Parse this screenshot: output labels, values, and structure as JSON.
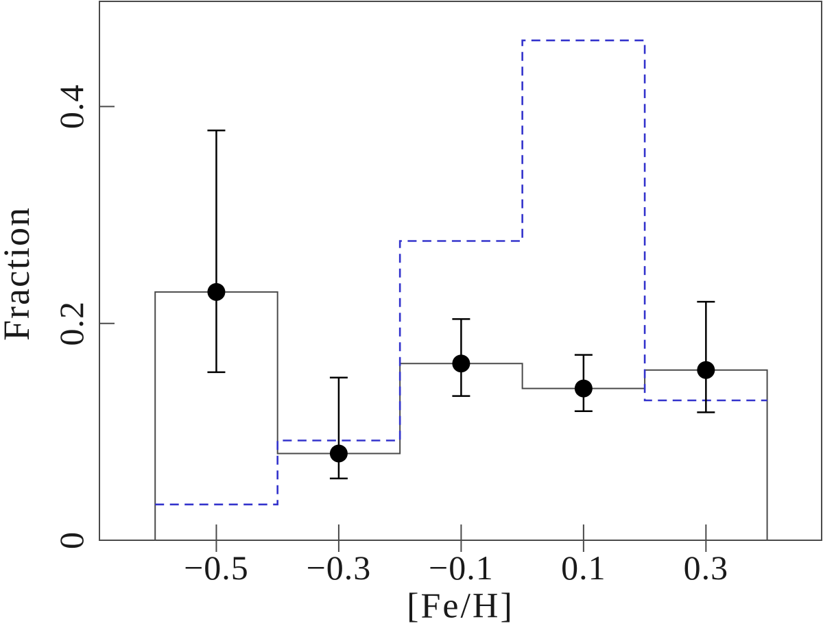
{
  "chart_data": {
    "type": "bar",
    "subtype": "step-histogram with scatter points and error bars",
    "title": "",
    "xlabel": "[Fe/H]",
    "ylabel": "Fraction",
    "xlim": [
      -0.691,
      0.489
    ],
    "ylim": [
      0,
      0.497
    ],
    "grid": false,
    "legend": null,
    "bin_edges": [
      -0.6,
      -0.4,
      -0.2,
      0.0,
      0.2,
      0.4
    ],
    "bin_centers": [
      -0.5,
      -0.3,
      -0.1,
      0.1,
      0.3
    ],
    "x_tick_values": [
      -0.5,
      -0.3,
      -0.1,
      0.1,
      0.3
    ],
    "x_tick_labels": [
      "−0.5",
      "−0.3",
      "−0.1",
      "0.1",
      "0.3"
    ],
    "y_tick_values": [
      0,
      0.2,
      0.4
    ],
    "y_tick_labels": [
      "0",
      "0.2",
      "0.4"
    ],
    "series": [
      {
        "name": "solid-histogram",
        "style": "solid-step",
        "color": "#4a4a4a",
        "values": [
          0.229,
          0.08,
          0.163,
          0.14,
          0.157
        ]
      },
      {
        "name": "dashed-histogram",
        "style": "dashed-step",
        "color": "#3333cc",
        "values": [
          0.033,
          0.092,
          0.276,
          0.461,
          0.129
        ]
      },
      {
        "name": "data-points",
        "style": "filled-circles-with-errorbars",
        "color": "#000000",
        "x": [
          -0.5,
          -0.3,
          -0.1,
          0.1,
          0.3
        ],
        "y": [
          0.229,
          0.08,
          0.163,
          0.14,
          0.157
        ],
        "err_hi": [
          0.378,
          0.15,
          0.204,
          0.171,
          0.22
        ],
        "err_lo": [
          0.155,
          0.057,
          0.133,
          0.119,
          0.118
        ]
      }
    ],
    "frame_color": "#4a4a4a",
    "background_color": "#ffffff"
  }
}
